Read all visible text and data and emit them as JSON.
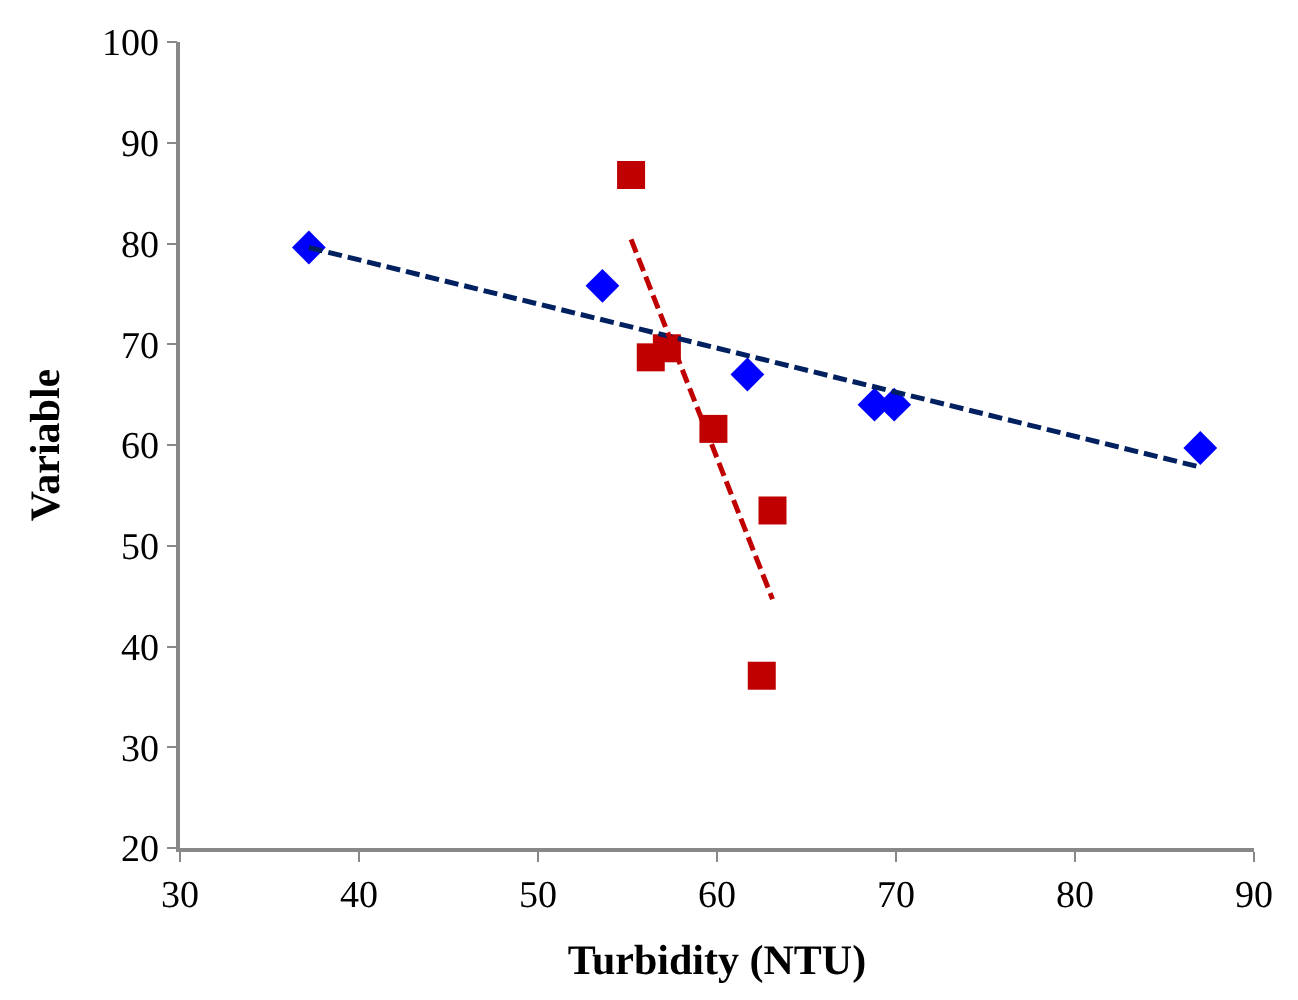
{
  "chart_data": {
    "type": "scatter",
    "xlabel": "Turbidity (NTU)",
    "ylabel": "Variable",
    "xlim": [
      30,
      90
    ],
    "xticks": [
      30,
      40,
      50,
      60,
      70,
      80,
      90
    ],
    "ylim": [
      20,
      100
    ],
    "yticks": [
      20,
      30,
      40,
      50,
      60,
      70,
      80,
      90,
      100
    ],
    "series": [
      {
        "marker": "diamond",
        "color": "#0000ff",
        "x": [
          37.2,
          53.6,
          61.7,
          68.8,
          69.9,
          87.0
        ],
        "values": [
          79.6,
          75.8,
          67.0,
          64.0,
          64.0,
          59.7
        ]
      },
      {
        "marker": "square",
        "color": "#c00000",
        "x": [
          55.2,
          56.3,
          57.2,
          59.8,
          63.1,
          62.5
        ],
        "values": [
          86.8,
          68.7,
          69.6,
          61.6,
          53.5,
          37.1
        ]
      },
      {
        "type": "line",
        "line_style": "dashed",
        "color": "#002060",
        "x": [
          37.2,
          87.0
        ],
        "values": [
          79.6,
          57.8
        ]
      },
      {
        "type": "line",
        "line_style": "dashed",
        "color": "#c00000",
        "x": [
          55.2,
          63.1
        ],
        "values": [
          80.4,
          44.7
        ]
      }
    ]
  }
}
